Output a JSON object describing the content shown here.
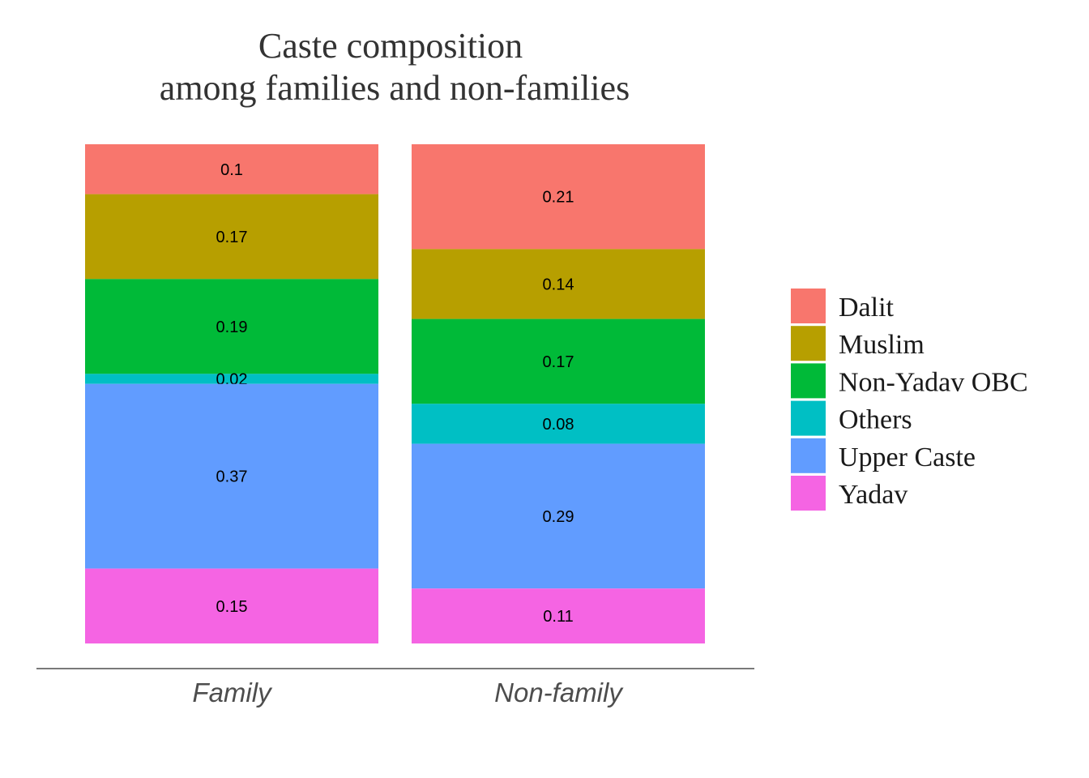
{
  "chart_data": {
    "type": "bar",
    "stacked": true,
    "title_lines": [
      "Caste composition",
      "among families and non-families"
    ],
    "categories": [
      "Family",
      "Non-family"
    ],
    "series": [
      {
        "name": "Dalit",
        "color": "#F8766D",
        "values": [
          0.1,
          0.21
        ]
      },
      {
        "name": "Muslim",
        "color": "#B79F00",
        "values": [
          0.17,
          0.14
        ]
      },
      {
        "name": "Non-Yadav OBC",
        "color": "#00BA38",
        "values": [
          0.19,
          0.17
        ]
      },
      {
        "name": "Others",
        "color": "#00BFC4",
        "values": [
          0.02,
          0.08
        ]
      },
      {
        "name": "Upper Caste",
        "color": "#619CFF",
        "values": [
          0.37,
          0.29
        ]
      },
      {
        "name": "Yadav",
        "color": "#F564E3",
        "values": [
          0.15,
          0.11
        ]
      }
    ],
    "data_labels": [
      [
        "0.1",
        "0.17",
        "0.19",
        "0.02",
        "0.37",
        "0.15"
      ],
      [
        "0.21",
        "0.14",
        "0.17",
        "0.08",
        "0.29",
        "0.11"
      ]
    ],
    "ylim": [
      0,
      1
    ],
    "stack_order": "Dalit on top, Yadav at bottom",
    "legend_position": "right",
    "grid": false,
    "xlabel": "",
    "ylabel": ""
  }
}
